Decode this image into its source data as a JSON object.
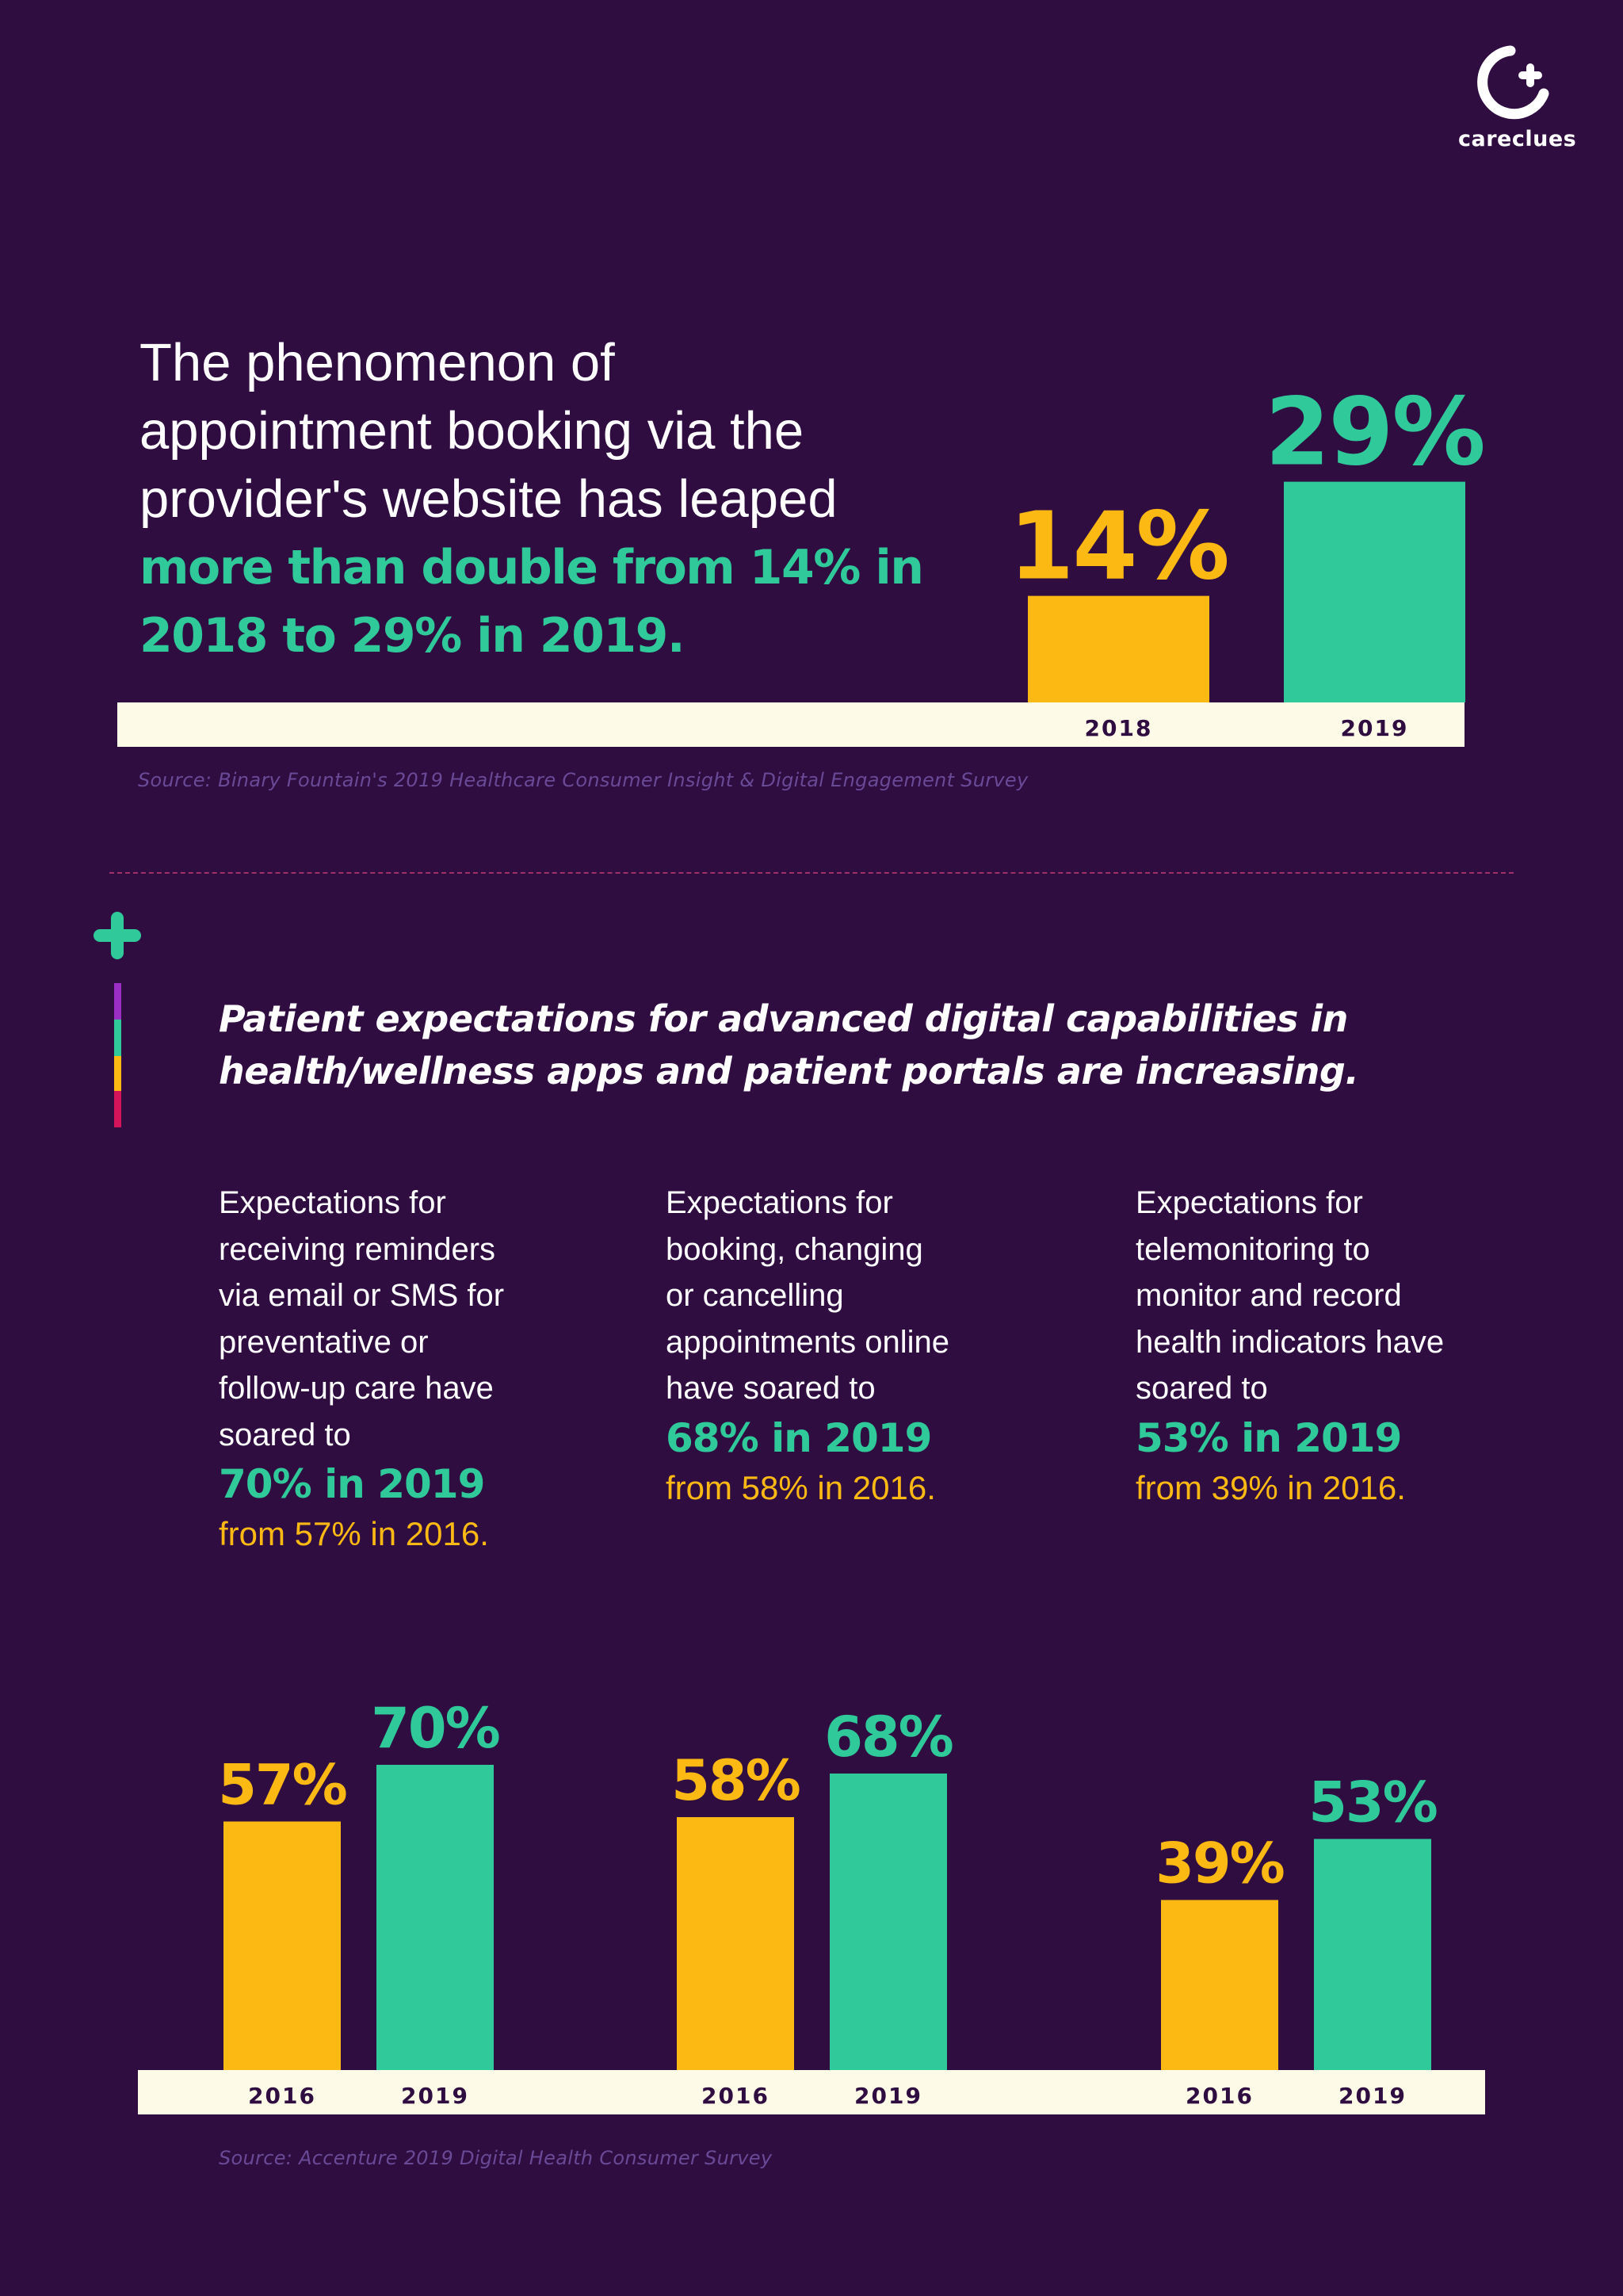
{
  "brand": {
    "name": "careclues",
    "logo_icon": "crescent-plus-icon",
    "colors": {
      "background": "#2f0d41",
      "teal": "#2fc99a",
      "yellow": "#fdb913",
      "base": "#fdfbe7",
      "muted": "#6a4a97",
      "dark_text": "#2f0d41"
    }
  },
  "section1": {
    "headline_lines": [
      "The phenomenon of",
      "appointment booking via the",
      "provider's website has leaped"
    ],
    "headline_highlight_lines": [
      "more than double from 14% in",
      "2018 to 29% in 2019."
    ],
    "source": "Source: Binary Fountain's 2019 Healthcare Consumer Insight & Digital Engagement Survey"
  },
  "section2": {
    "heading_lines": [
      "Patient expectations for advanced digital capabilities in",
      "health/wellness apps and patient portals are increasing."
    ],
    "stats": [
      {
        "desc_lines": [
          "Expectations for",
          "receiving reminders",
          "via email or SMS for",
          "preventative or",
          "follow-up care have",
          "soared to"
        ],
        "value": "70% in 2019",
        "from": "from 57% in 2016."
      },
      {
        "desc_lines": [
          "Expectations for",
          "booking, changing",
          "or cancelling",
          "appointments online",
          "have soared to"
        ],
        "value": "68% in 2019",
        "from": "from 58% in 2016."
      },
      {
        "desc_lines": [
          "Expectations for",
          "telemonitoring to",
          "monitor and record",
          "health indicators have",
          "soared to"
        ],
        "value": "53% in 2019",
        "from": "from 39% in 2016."
      }
    ],
    "source": "Source: Accenture 2019 Digital Health Consumer Survey"
  },
  "chart_data": [
    {
      "type": "bar",
      "title": "Appointment booking via provider's website",
      "categories": [
        "2018",
        "2019"
      ],
      "values": [
        14,
        29
      ],
      "labels": [
        "14%",
        "29%"
      ],
      "colors": [
        "#fdb913",
        "#2fc99a"
      ],
      "ylim": [
        0,
        30
      ]
    },
    {
      "type": "bar",
      "title": "Reminders via email or SMS",
      "categories": [
        "2016",
        "2019"
      ],
      "values": [
        57,
        70
      ],
      "labels": [
        "57%",
        "70%"
      ],
      "colors": [
        "#fdb913",
        "#2fc99a"
      ],
      "ylim": [
        0,
        70
      ]
    },
    {
      "type": "bar",
      "title": "Booking, changing or cancelling appointments online",
      "categories": [
        "2016",
        "2019"
      ],
      "values": [
        58,
        68
      ],
      "labels": [
        "58%",
        "68%"
      ],
      "colors": [
        "#fdb913",
        "#2fc99a"
      ],
      "ylim": [
        0,
        70
      ]
    },
    {
      "type": "bar",
      "title": "Telemonitoring of health indicators",
      "categories": [
        "2016",
        "2019"
      ],
      "values": [
        39,
        53
      ],
      "labels": [
        "39%",
        "53%"
      ],
      "colors": [
        "#fdb913",
        "#2fc99a"
      ],
      "ylim": [
        0,
        70
      ]
    }
  ]
}
